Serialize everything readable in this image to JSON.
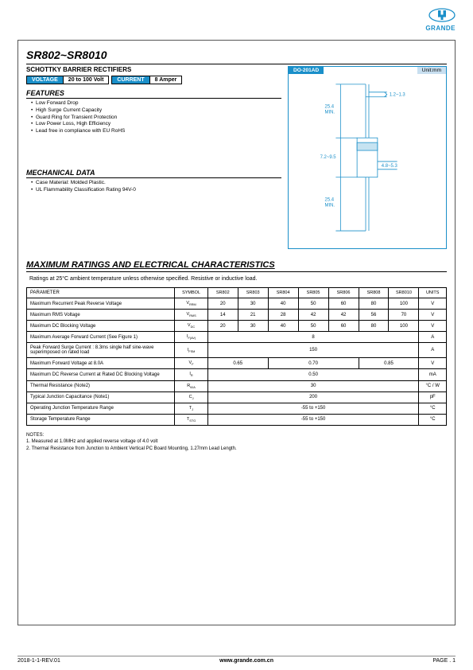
{
  "logo_text": "GRANDE",
  "title": "SR802~SR8010",
  "subtitle": "SCHOTTKY BARRIER RECTIFIERS",
  "rail": {
    "voltage_label": "VOLTAGE",
    "voltage_value": "20 to 100 Volt",
    "current_label": "CURRENT",
    "current_value": "8 Amper"
  },
  "features_hdr": "FEATURES",
  "features": [
    "Low Forward Drop",
    "High Surge Current Capacity",
    "Guard Ring for Transient Protection",
    "Low Power Loss, High Efficiency",
    "Lead free in compliance with EU RoHS"
  ],
  "mech_hdr": "MECHANICAL DATA",
  "mech": [
    "Case Material: Molded Plastic.",
    "UL Flammability Classification Rating 94V-0"
  ],
  "pkg": {
    "name": "DO-201AD",
    "unit": "Unit:mm",
    "dims": {
      "lead_dia": "1.2~1.3",
      "lead_len": "25.4\nMIN.",
      "body_h": "7.2~9.5",
      "body_w": "4.8~5.3"
    }
  },
  "max_hdr": "MAXIMUM RATINGS AND ELECTRICAL CHARACTERISTICS",
  "max_sub": "Ratings at 25°C ambient temperature unless otherwise specified.  Resistive or inductive load.",
  "table": {
    "head_param": "PARAMETER",
    "head_symbol": "SYMBOL",
    "parts": [
      "SR802",
      "SR803",
      "SR804",
      "SR805",
      "SR806",
      "SR808",
      "SR8010"
    ],
    "head_units": "UNITS",
    "rows": [
      {
        "p": "Maximum Recurrent Peak Reverse Voltage",
        "s": "V",
        "sub": "RRM",
        "v": [
          "20",
          "30",
          "40",
          "50",
          "60",
          "80",
          "100"
        ],
        "u": "V"
      },
      {
        "p": "Maximum RMS Voltage",
        "s": "V",
        "sub": "RMS",
        "v": [
          "14",
          "21",
          "28",
          "42",
          "42",
          "56",
          "70"
        ],
        "u": "V"
      },
      {
        "p": "Maximum DC Blocking Voltage",
        "s": "V",
        "sub": "DC",
        "v": [
          "20",
          "30",
          "40",
          "50",
          "60",
          "80",
          "100"
        ],
        "u": "V"
      },
      {
        "p": "Maximum Average Forward Current (See Figure 1)",
        "s": "I",
        "sub": "F(AV)",
        "span": "8",
        "u": "A"
      },
      {
        "p": "Peak Forward Surge Current : 8.3ms single half sine-wave superimposed on rated load",
        "s": "I",
        "sub": "FSM",
        "span": "150",
        "u": "A"
      },
      {
        "p": "Maximum Forward Voltage at 8.0A",
        "s": "V",
        "sub": "F",
        "multi": [
          {
            "c": 2,
            "v": "0.65"
          },
          {
            "c": 3,
            "v": "0.70"
          },
          {
            "c": 2,
            "v": "0.85"
          }
        ],
        "u": "V"
      },
      {
        "p": "Maximum DC Reverse Current at Rated DC Blocking Voltage",
        "s": "I",
        "sub": "R",
        "span": "0.50",
        "u": "mA"
      },
      {
        "p": "Thermal Resistance (Note2)",
        "s": "R",
        "sub": "θJA",
        "span": "30",
        "u": "°C / W"
      },
      {
        "p": "Typical Junction Capacitance (Note1)",
        "s": "C",
        "sub": "J",
        "span": "200",
        "u": "pF"
      },
      {
        "p": "Operating Junction Temperature Range",
        "s": "T",
        "sub": "J",
        "span": "-55 to +150",
        "u": "°C"
      },
      {
        "p": "Storage Temperature Range",
        "s": "T",
        "sub": "STG",
        "span": "-55 to +150",
        "u": "°C"
      }
    ]
  },
  "notes_hdr": "NOTES:",
  "notes": [
    "1. Measured at 1.0MHz and applied reverse voltage of 4.0 volt",
    "2. Thermal Resistance from Junction to Ambient Vertical PC Board Mounting, 1.27mm Lead Length."
  ],
  "footer": {
    "left": "2018-1-1-REV.01",
    "center": "www.grande.com.cn",
    "right": "PAGE . 1"
  }
}
